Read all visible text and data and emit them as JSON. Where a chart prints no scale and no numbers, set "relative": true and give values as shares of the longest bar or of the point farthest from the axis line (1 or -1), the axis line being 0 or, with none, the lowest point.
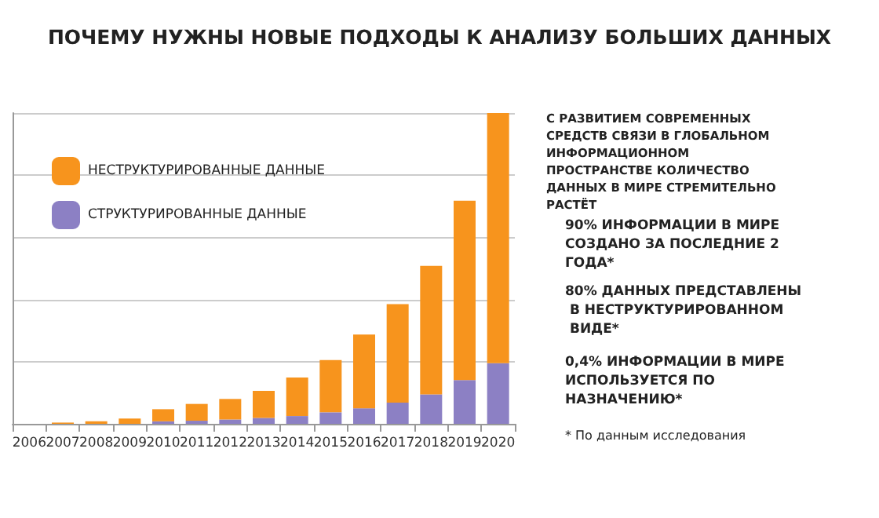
{
  "chart_data": {
    "type": "bar",
    "title": "ПОЧЕМУ НУЖНЫ НОВЫЕ ПОДХОДЫ К АНАЛИЗУ БОЛЬШИХ ДАННЫХ",
    "categories": [
      "2006",
      "2007",
      "2008",
      "2009",
      "2010",
      "2011",
      "2012",
      "2013",
      "2014",
      "2015",
      "2016",
      "2017",
      "2018",
      "2019",
      "2020"
    ],
    "relative": true,
    "stacked": true,
    "grid": "y",
    "legend": "top left",
    "series": [
      {
        "name": "СТРУКТУРИРОВАННЫЕ ДАННЫЕ",
        "color": "#8c80c4",
        "values": [
          0,
          0,
          0,
          0,
          0.008,
          0.01,
          0.014,
          0.019,
          0.025,
          0.037,
          0.05,
          0.068,
          0.095,
          0.141,
          0.195
        ]
      },
      {
        "name": "НЕСТРУКТУРИРОВАННЫЕ ДАННЫЕ",
        "color": "#f7941d",
        "values": [
          0,
          0.004,
          0.008,
          0.017,
          0.039,
          0.054,
          0.066,
          0.087,
          0.124,
          0.168,
          0.237,
          0.317,
          0.413,
          0.577,
          0.805
        ]
      }
    ],
    "annotations": [
      "С РАЗВИТИЕМ СОВРЕМЕННЫХ СРЕДСТВ СВЯЗИ В ГЛОБАЛЬНОМ ИНФОРМАЦИОННОМ ПРОСТРАНСТВЕ КОЛИЧЕСТВО ДАННЫХ В МИРЕ СТРЕМИТЕЛЬНО РАСТЁТ",
      "90% ИНФОРМАЦИИ В МИРЕ СОЗДАНО ЗА ПОСЛЕДНИЕ 2 ГОДА*",
      "80% ДАННЫХ ПРЕДСТАВЛЕНЫ В НЕСТРУКТУРИРОВАННОМ ВИДЕ*",
      "0,4% ИНФОРМАЦИИ В МИРЕ ИСПОЛЬЗУЕТСЯ ПО НАЗНАЧЕНИЮ*",
      "* По данным исследования"
    ]
  }
}
